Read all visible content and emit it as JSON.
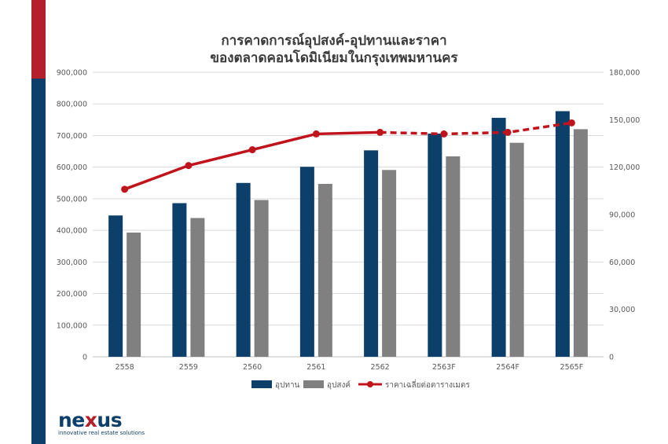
{
  "colors": {
    "supply": "#0c3f6a",
    "demand": "#808080",
    "price": "#c0141c",
    "accent_red": "#b31f2a",
    "accent_blue": "#0c3f6a"
  },
  "logo": {
    "word_a": "ne",
    "word_x": "x",
    "word_b": "us",
    "tagline": "innovative real estate solutions"
  },
  "chart_data": {
    "type": "bar",
    "title": "การคาดการณ์อุปสงค์-อุปทานและราคา",
    "subtitle": "ของตลาดคอนโดมิเนียมในกรุงเทพมหานคร",
    "categories": [
      "2558",
      "2559",
      "2560",
      "2561",
      "2562",
      "2563F",
      "2564F",
      "2565F"
    ],
    "series": [
      {
        "name": "อุปทาน",
        "type": "bar",
        "axis": "left",
        "values": [
          447000,
          486000,
          550000,
          601000,
          653000,
          706000,
          756000,
          777000
        ]
      },
      {
        "name": "อุปสงค์",
        "type": "bar",
        "axis": "left",
        "values": [
          393000,
          439000,
          496000,
          547000,
          591000,
          634000,
          677000,
          720000
        ]
      },
      {
        "name": "ราคาเฉลี่ยต่อตารางเมตร",
        "type": "line",
        "axis": "right",
        "values": [
          106000,
          121000,
          131000,
          141000,
          142000,
          141000,
          142000,
          148000
        ],
        "dashed_from_index": 4
      }
    ],
    "ylim_left": [
      0,
      900000
    ],
    "yticks_left": [
      "900,000",
      "800,000",
      "700,000",
      "600,000",
      "500,000",
      "400,000",
      "300,000",
      "200,000",
      "100,000",
      "0"
    ],
    "ylim_right": [
      0,
      180000
    ],
    "yticks_right": [
      "180,000",
      "150,000",
      "120,000",
      "90,000",
      "60,000",
      "30,000",
      "0"
    ],
    "grid": true,
    "legend": "bottom"
  }
}
